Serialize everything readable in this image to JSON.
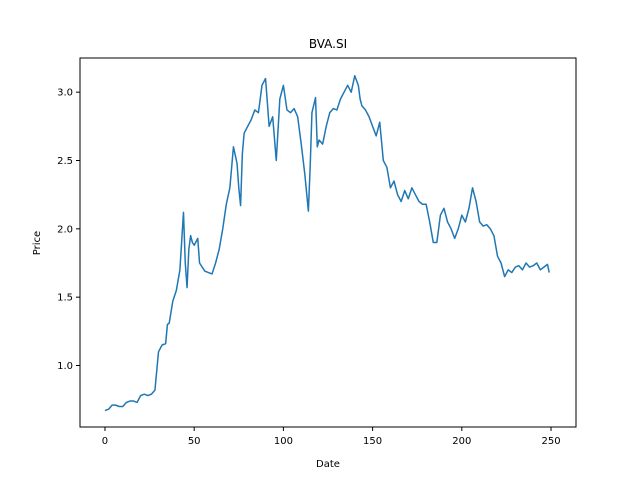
{
  "chart_data": {
    "type": "line",
    "title": "BVA.SI",
    "xlabel": "Date",
    "ylabel": "Price",
    "xlim": [
      -14,
      264
    ],
    "ylim": [
      0.55,
      3.25
    ],
    "xticks": [
      0,
      50,
      100,
      150,
      200,
      250
    ],
    "yticks": [
      1.0,
      1.5,
      2.0,
      2.5,
      3.0
    ],
    "xtick_labels": [
      "0",
      "50",
      "100",
      "150",
      "200",
      "250"
    ],
    "ytick_labels": [
      "1.0",
      "1.5",
      "2.0",
      "2.5",
      "3.0"
    ],
    "grid": false,
    "legend": false,
    "colors": {
      "line": "#1f77b4",
      "axes": "#000000",
      "background": "#ffffff"
    },
    "series": [
      {
        "x": [
          0,
          2,
          4,
          6,
          8,
          10,
          12,
          14,
          16,
          18,
          20,
          22,
          24,
          26,
          28,
          30,
          32,
          34,
          35,
          36,
          38,
          40,
          42,
          44,
          45,
          46,
          47,
          48,
          49,
          50,
          52,
          53,
          54,
          56,
          58,
          60,
          62,
          64,
          66,
          68,
          70,
          72,
          74,
          75,
          76,
          77,
          78,
          80,
          82,
          84,
          86,
          88,
          90,
          92,
          94,
          96,
          98,
          100,
          102,
          104,
          106,
          108,
          110,
          112,
          114,
          115,
          116,
          118,
          119,
          120,
          122,
          124,
          126,
          128,
          130,
          132,
          134,
          136,
          138,
          140,
          142,
          143,
          144,
          146,
          148,
          150,
          152,
          154,
          156,
          158,
          160,
          162,
          164,
          166,
          168,
          170,
          172,
          174,
          176,
          178,
          180,
          182,
          184,
          186,
          188,
          190,
          192,
          194,
          196,
          198,
          200,
          202,
          204,
          206,
          208,
          210,
          212,
          214,
          216,
          218,
          220,
          222,
          224,
          226,
          228,
          230,
          232,
          234,
          236,
          238,
          240,
          242,
          244,
          246,
          248,
          249
        ],
        "y": [
          0.67,
          0.68,
          0.71,
          0.71,
          0.7,
          0.7,
          0.73,
          0.74,
          0.74,
          0.73,
          0.78,
          0.79,
          0.78,
          0.79,
          0.82,
          1.1,
          1.15,
          1.16,
          1.3,
          1.31,
          1.47,
          1.55,
          1.7,
          2.12,
          1.75,
          1.57,
          1.85,
          1.95,
          1.9,
          1.88,
          1.93,
          1.75,
          1.73,
          1.69,
          1.68,
          1.67,
          1.75,
          1.85,
          2.0,
          2.18,
          2.3,
          2.6,
          2.48,
          2.3,
          2.17,
          2.55,
          2.7,
          2.75,
          2.8,
          2.87,
          2.85,
          3.05,
          3.1,
          2.75,
          2.82,
          2.5,
          2.95,
          3.05,
          2.87,
          2.85,
          2.88,
          2.82,
          2.62,
          2.4,
          2.13,
          2.45,
          2.85,
          2.96,
          2.6,
          2.65,
          2.62,
          2.75,
          2.85,
          2.88,
          2.87,
          2.95,
          3.0,
          3.05,
          3.0,
          3.12,
          3.05,
          2.95,
          2.9,
          2.87,
          2.82,
          2.75,
          2.68,
          2.78,
          2.5,
          2.45,
          2.3,
          2.35,
          2.25,
          2.2,
          2.28,
          2.22,
          2.3,
          2.25,
          2.2,
          2.18,
          2.18,
          2.05,
          1.9,
          1.9,
          2.1,
          2.15,
          2.05,
          2.0,
          1.93,
          2.0,
          2.1,
          2.05,
          2.15,
          2.3,
          2.2,
          2.05,
          2.02,
          2.03,
          2.0,
          1.95,
          1.8,
          1.75,
          1.65,
          1.7,
          1.68,
          1.72,
          1.73,
          1.7,
          1.75,
          1.72,
          1.73,
          1.75,
          1.7,
          1.72,
          1.74,
          1.68
        ]
      }
    ]
  }
}
